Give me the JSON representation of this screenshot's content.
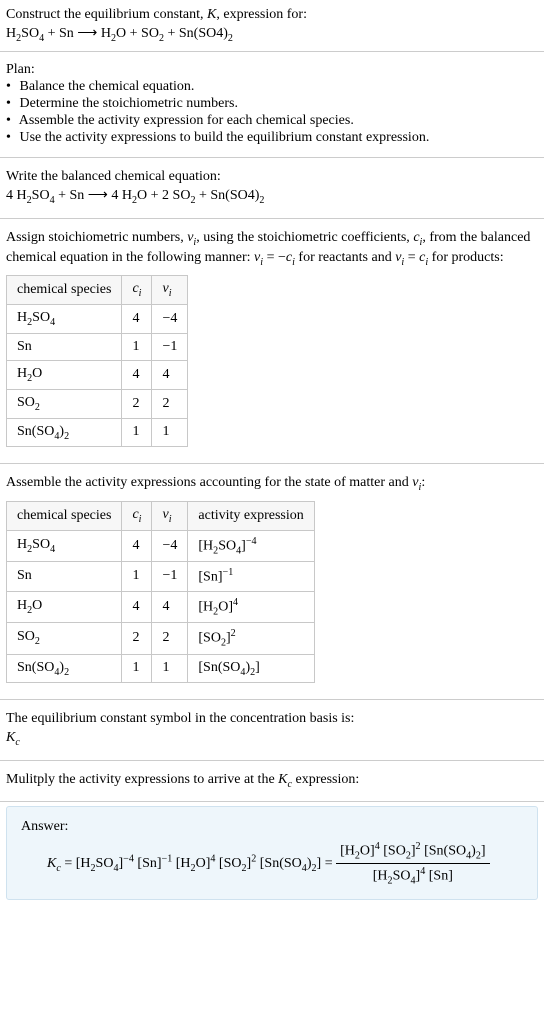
{
  "header": {
    "line1": "Construct the equilibrium constant, <span class=\"ital\">K</span>, expression for:",
    "line2": "H<span class=\"sub\">2</span>SO<span class=\"sub\">4</span> + Sn ⟶ H<span class=\"sub\">2</span>O + SO<span class=\"sub\">2</span> + Sn(SO4)<span class=\"sub\">2</span>"
  },
  "plan": {
    "title": "Plan:",
    "steps": [
      "Balance the chemical equation.",
      "Determine the stoichiometric numbers.",
      "Assemble the activity expression for each chemical species.",
      "Use the activity expressions to build the equilibrium constant expression."
    ]
  },
  "balanced": {
    "title": "Write the balanced chemical equation:",
    "equation": "4 H<span class=\"sub\">2</span>SO<span class=\"sub\">4</span> + Sn ⟶ 4 H<span class=\"sub\">2</span>O + 2 SO<span class=\"sub\">2</span> + Sn(SO4)<span class=\"sub\">2</span>"
  },
  "stoich": {
    "intro": "Assign stoichiometric numbers, <span class=\"ital\">ν<span class=\"sub\">i</span></span>, using the stoichiometric coefficients, <span class=\"ital\">c<span class=\"sub\">i</span></span>, from the balanced chemical equation in the following manner: <span class=\"ital\">ν<span class=\"sub\">i</span></span> = −<span class=\"ital\">c<span class=\"sub\">i</span></span> for reactants and <span class=\"ital\">ν<span class=\"sub\">i</span></span> = <span class=\"ital\">c<span class=\"sub\">i</span></span> for products:",
    "headers": [
      "chemical species",
      "<span class=\"ital\">c<span class=\"sub\">i</span></span>",
      "<span class=\"ital\">ν<span class=\"sub\">i</span></span>"
    ],
    "rows": [
      [
        "H<span class=\"sub\">2</span>SO<span class=\"sub\">4</span>",
        "4",
        "−4"
      ],
      [
        "Sn",
        "1",
        "−1"
      ],
      [
        "H<span class=\"sub\">2</span>O",
        "4",
        "4"
      ],
      [
        "SO<span class=\"sub\">2</span>",
        "2",
        "2"
      ],
      [
        "Sn(SO<span class=\"sub\">4</span>)<span class=\"sub\">2</span>",
        "1",
        "1"
      ]
    ]
  },
  "activity": {
    "intro": "Assemble the activity expressions accounting for the state of matter and <span class=\"ital\">ν<span class=\"sub\">i</span></span>:",
    "headers": [
      "chemical species",
      "<span class=\"ital\">c<span class=\"sub\">i</span></span>",
      "<span class=\"ital\">ν<span class=\"sub\">i</span></span>",
      "activity expression"
    ],
    "rows": [
      [
        "H<span class=\"sub\">2</span>SO<span class=\"sub\">4</span>",
        "4",
        "−4",
        "[H<span class=\"sub\">2</span>SO<span class=\"sub\">4</span>]<span class=\"sup\">−4</span>"
      ],
      [
        "Sn",
        "1",
        "−1",
        "[Sn]<span class=\"sup\">−1</span>"
      ],
      [
        "H<span class=\"sub\">2</span>O",
        "4",
        "4",
        "[H<span class=\"sub\">2</span>O]<span class=\"sup\">4</span>"
      ],
      [
        "SO<span class=\"sub\">2</span>",
        "2",
        "2",
        "[SO<span class=\"sub\">2</span>]<span class=\"sup\">2</span>"
      ],
      [
        "Sn(SO<span class=\"sub\">4</span>)<span class=\"sub\">2</span>",
        "1",
        "1",
        "[Sn(SO<span class=\"sub\">4</span>)<span class=\"sub\">2</span>]"
      ]
    ]
  },
  "kc_sym": {
    "line1": "The equilibrium constant symbol in the concentration basis is:",
    "line2": "<span class=\"ital\">K<span class=\"sub\">c</span></span>"
  },
  "multiply": {
    "line": "Mulitply the activity expressions to arrive at the <span class=\"ital\">K<span class=\"sub\">c</span></span> expression:"
  },
  "answer": {
    "label": "Answer:",
    "lhs_html": "<span class=\"ital\">K<span class=\"sub\">c</span></span> = [H<span class=\"sub\">2</span>SO<span class=\"sub\">4</span>]<span class=\"sup\">−4</span> [Sn]<span class=\"sup\">−1</span> [H<span class=\"sub\">2</span>O]<span class=\"sup\">4</span> [SO<span class=\"sub\">2</span>]<span class=\"sup\">2</span> [Sn(SO<span class=\"sub\">4</span>)<span class=\"sub\">2</span>] = ",
    "frac_num": "[H<span class=\"sub\">2</span>O]<span class=\"sup\">4</span> [SO<span class=\"sub\">2</span>]<span class=\"sup\">2</span> [Sn(SO<span class=\"sub\">4</span>)<span class=\"sub\">2</span>]",
    "frac_den": "[H<span class=\"sub\">2</span>SO<span class=\"sub\">4</span>]<span class=\"sup\">4</span> [Sn]"
  },
  "colors": {
    "border": "#cccccc",
    "answer_bg": "#eef6fb",
    "answer_border": "#cfe2ef"
  }
}
